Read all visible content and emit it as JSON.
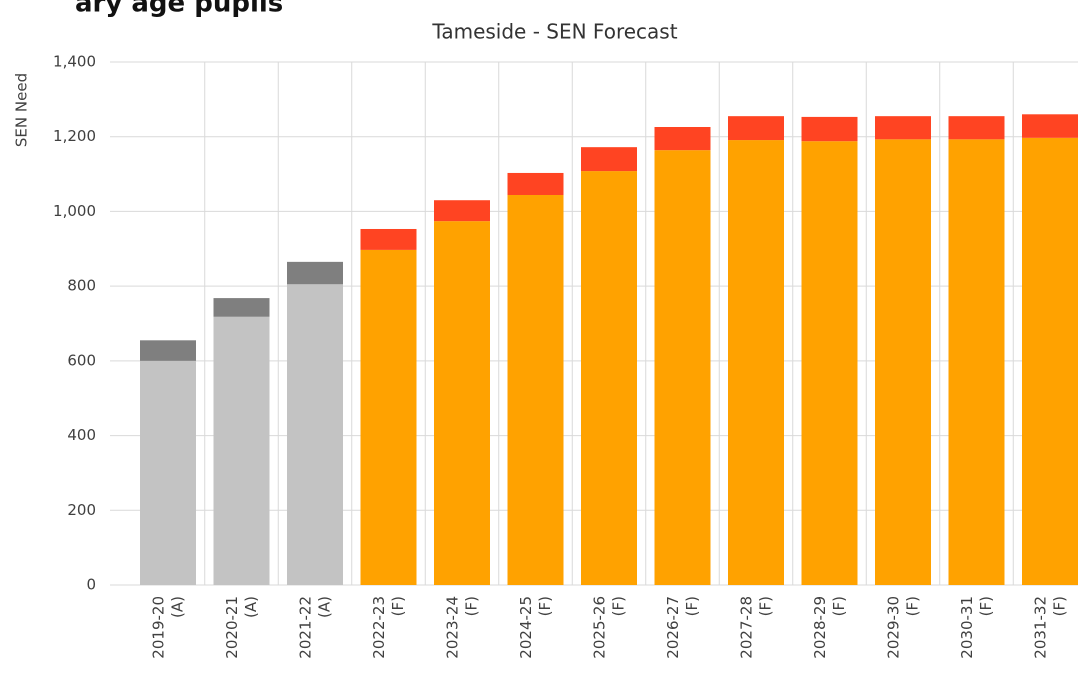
{
  "page_heading": "ary age pupils",
  "chart_data": {
    "type": "stacked_bar",
    "title": "Tameside - SEN Forecast",
    "y_label": "SEN Need",
    "categories": [
      [
        "2019-20",
        "(A)"
      ],
      [
        "2020-21",
        "(A)"
      ],
      [
        "2021-22",
        "(A)"
      ],
      [
        "2022-23",
        "(F)"
      ],
      [
        "2023-24",
        "(F)"
      ],
      [
        "2024-25",
        "(F)"
      ],
      [
        "2025-26",
        "(F)"
      ],
      [
        "2026-27",
        "(F)"
      ],
      [
        "2027-28",
        "(F)"
      ],
      [
        "2028-29",
        "(F)"
      ],
      [
        "2029-30",
        "(F)"
      ],
      [
        "2030-31",
        "(F)"
      ],
      [
        "2031-32",
        "(F)"
      ]
    ],
    "series": [
      {
        "values": [
          600,
          718,
          805,
          897,
          974,
          1044,
          1108,
          1164,
          1191,
          1188,
          1193,
          1193,
          1197
        ],
        "colors": [
          "#c3c3c3",
          "#c3c3c3",
          "#c3c3c3",
          "#ffa200",
          "#ffa200",
          "#ffa200",
          "#ffa200",
          "#ffa200",
          "#ffa200",
          "#ffa200",
          "#ffa200",
          "#ffa200",
          "#ffa200"
        ]
      },
      {
        "values": [
          55,
          50,
          60,
          56,
          56,
          59,
          64,
          62,
          64,
          65,
          62,
          62,
          63
        ],
        "colors": [
          "#7f7f7f",
          "#7f7f7f",
          "#7f7f7f",
          "#ff4422",
          "#ff4422",
          "#ff4422",
          "#ff4422",
          "#ff4422",
          "#ff4422",
          "#ff4422",
          "#ff4422",
          "#ff4422",
          "#ff4422"
        ]
      }
    ],
    "ylim": [
      0,
      1400
    ],
    "yticks": [
      0,
      200,
      400,
      600,
      800,
      {
        "value": 1000,
        "label": "1,000"
      },
      {
        "value": 1200,
        "label": "1,200"
      },
      {
        "value": 1400,
        "label": "1,400"
      }
    ],
    "grid": true
  }
}
